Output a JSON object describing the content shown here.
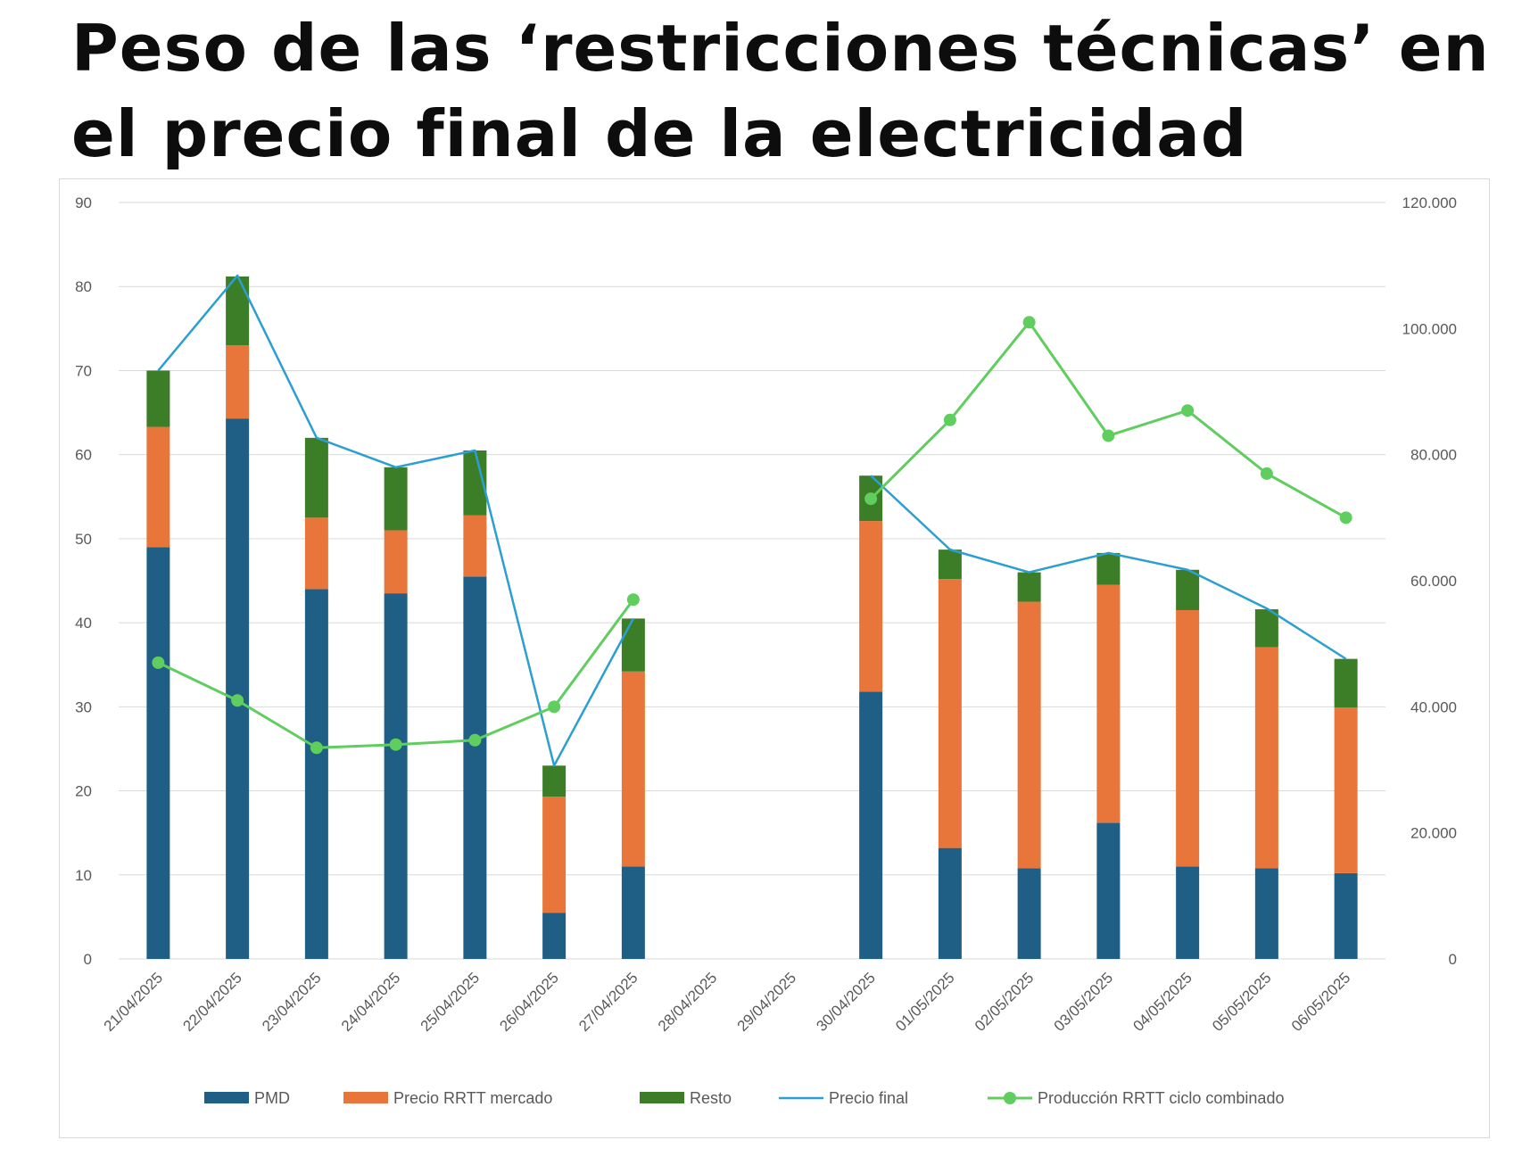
{
  "title": "Peso de las ‘restricciones técnicas’ en el precio final de la electricidad",
  "chart_data": {
    "type": "bar",
    "stacked": true,
    "categories": [
      "21/04/2025",
      "22/04/2025",
      "23/04/2025",
      "24/04/2025",
      "25/04/2025",
      "26/04/2025",
      "27/04/2025",
      "28/04/2025",
      "29/04/2025",
      "30/04/2025",
      "01/05/2025",
      "02/05/2025",
      "03/05/2025",
      "04/05/2025",
      "05/05/2025",
      "06/05/2025"
    ],
    "series": [
      {
        "name": "PMD",
        "kind": "bar",
        "axis": "left",
        "color": "#1f5f86",
        "values": [
          49,
          64.3,
          44,
          43.5,
          45.5,
          5.5,
          11,
          null,
          null,
          31.8,
          13.2,
          10.8,
          16.2,
          11,
          10.8,
          10.2
        ]
      },
      {
        "name": "Precio RRTT mercado",
        "kind": "bar",
        "axis": "left",
        "color": "#e8763a",
        "values": [
          14.3,
          8.7,
          8.5,
          7.5,
          7.3,
          13.8,
          23.2,
          null,
          null,
          20.3,
          32,
          31.7,
          28.3,
          30.5,
          26.3,
          19.7
        ]
      },
      {
        "name": "Resto",
        "kind": "bar",
        "axis": "left",
        "color": "#3c7d27",
        "values": [
          6.7,
          8.2,
          9.5,
          7.5,
          7.7,
          3.7,
          6.3,
          null,
          null,
          5.4,
          3.5,
          3.5,
          3.8,
          4.8,
          4.5,
          5.8
        ]
      },
      {
        "name": "Precio final",
        "kind": "line",
        "axis": "left",
        "color": "#2b9fd1",
        "values": [
          70,
          81.3,
          62,
          58.5,
          60.5,
          23,
          40.5,
          null,
          null,
          57.5,
          48.7,
          46,
          48.3,
          46.3,
          41.7,
          35.7
        ]
      },
      {
        "name": "Producción RRTT ciclo combinado",
        "kind": "line",
        "axis": "right",
        "color": "#5fce5f",
        "marker": "circle",
        "values": [
          47000,
          41000,
          33500,
          34000,
          34700,
          40000,
          57000,
          null,
          null,
          73000,
          85500,
          101000,
          83000,
          87000,
          77000,
          70000
        ]
      }
    ],
    "y_left": {
      "min": 0,
      "max": 90,
      "ticks": [
        "0",
        "10",
        "20",
        "30",
        "40",
        "50",
        "60",
        "70",
        "80",
        "90"
      ]
    },
    "y_right": {
      "min": 0,
      "max": 120000,
      "ticks": [
        "0",
        "20.000",
        "40.000",
        "60.000",
        "80.000",
        "100.000",
        "120.000"
      ]
    },
    "grid": true,
    "legend_position": "bottom"
  }
}
